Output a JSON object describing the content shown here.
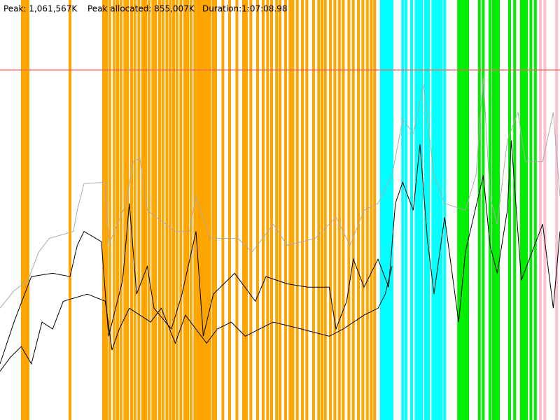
{
  "header": {
    "peak": "Peak: 1,061,567K",
    "peak_allocated": "Peak allocated: 855,007K",
    "duration": "Duration:1:07:08.98"
  },
  "chart_data": {
    "type": "line",
    "xlim": [
      0,
      100
    ],
    "ylim": [
      0,
      1273880
    ],
    "peak": 1061567,
    "peak_color": "#ff6060",
    "events": [
      {
        "color": "#ffa500",
        "x": [
          4,
          4.5,
          5,
          12.5,
          18.5,
          19,
          19.6,
          20.4,
          21,
          21.6,
          22.3,
          22.8,
          23.5,
          24.1,
          24.8,
          25.5,
          26,
          26.6,
          27.3,
          27.8,
          28.5,
          29.1,
          29.8,
          30.4,
          31,
          31.6,
          32.3,
          33,
          33.5,
          34.1,
          34.8,
          35.3,
          35.6,
          36,
          36.5,
          37,
          37.5,
          38.1,
          38.5,
          39.8,
          41,
          42.3,
          43.5,
          44,
          44.8,
          46,
          47,
          47.8,
          48.5,
          49.4,
          50,
          51,
          51.8,
          52.3,
          53.1,
          54,
          54.8,
          56,
          56.9,
          57.5,
          58.1,
          59,
          59.8,
          60.6,
          61.3,
          62.3,
          63.1,
          64,
          64.8,
          65.6,
          66.3,
          66.9
        ]
      },
      {
        "color": "#00ffff",
        "x": [
          68.1,
          68.5,
          69,
          69.5,
          70,
          71.9,
          72.5,
          73.5,
          74.3,
          74.8,
          75.3,
          76,
          76.5,
          77.3,
          77.8,
          78.3,
          78.8,
          79.4
        ]
      },
      {
        "color": "#00ee00",
        "x": [
          81.9,
          82.3,
          82.8,
          83.1,
          83.5,
          85.6,
          86.3,
          87.5,
          88.1,
          88.5,
          89,
          91,
          91.9,
          93.1,
          93.5,
          94,
          94.8,
          95.6
        ]
      },
      {
        "color": "#ffc0cb",
        "x": [
          96.5,
          97.3,
          99.4
        ]
      }
    ],
    "series": [
      {
        "color": "#aaaaaa",
        "x": [
          0,
          2.5,
          5,
          6.9,
          8.8,
          13.1,
          13.8,
          15,
          18.8,
          19.4,
          22.5,
          23.8,
          25,
          26.3,
          31.3,
          33.8,
          35,
          37.5,
          42.5,
          45,
          48.8,
          51.3,
          56.3,
          60,
          62.5,
          65,
          67.5,
          70,
          71.9,
          73.8,
          75.6,
          77.5,
          79.4,
          83.1,
          85,
          86.3,
          87.5,
          88.8,
          90.6,
          92.5,
          93.8,
          96.9,
          98.8,
          100
        ],
        "values": [
          339000,
          392000,
          424000,
          509000,
          551000,
          572000,
          636000,
          717000,
          721000,
          530000,
          657000,
          784000,
          795000,
          636000,
          572000,
          572000,
          678000,
          551000,
          551000,
          509000,
          594000,
          530000,
          551000,
          615000,
          530000,
          636000,
          657000,
          742000,
          912000,
          869000,
          1018000,
          742000,
          657000,
          636000,
          742000,
          1039000,
          678000,
          594000,
          848000,
          933000,
          784000,
          784000,
          933000,
          678000
        ]
      },
      {
        "color": "#000000",
        "x": [
          0,
          2.5,
          5.6,
          9.4,
          12.5,
          13.8,
          15,
          18.1,
          19.4,
          21.9,
          23.1,
          24.4,
          26.3,
          27.5,
          30.6,
          32.5,
          35,
          36.3,
          38.1,
          41.9,
          45.6,
          47.5,
          51.3,
          55,
          58.8,
          60,
          61.9,
          63.1,
          65,
          67.5,
          69.4,
          70.6,
          71.9,
          73.8,
          75,
          76.3,
          77.5,
          79.4,
          81.9,
          83.1,
          86.3,
          87.5,
          88.8,
          90.6,
          91.3,
          93.1,
          96.9,
          98.8,
          100
        ],
        "values": [
          170000,
          297000,
          435000,
          445000,
          435000,
          530000,
          572000,
          541000,
          254000,
          424000,
          657000,
          382000,
          466000,
          339000,
          276000,
          382000,
          572000,
          254000,
          382000,
          445000,
          360000,
          435000,
          413000,
          403000,
          403000,
          276000,
          360000,
          488000,
          403000,
          488000,
          403000,
          657000,
          721000,
          636000,
          837000,
          551000,
          382000,
          615000,
          297000,
          509000,
          742000,
          530000,
          445000,
          636000,
          848000,
          424000,
          594000,
          339000,
          572000
        ]
      },
      {
        "color": "#000000",
        "x": [
          0,
          1.9,
          3.8,
          5.6,
          7.5,
          9.4,
          11.3,
          15.6,
          18.8,
          20,
          21.3,
          23.1,
          26.9,
          28.8,
          31.3,
          33.1,
          36.9,
          38.8,
          41.3,
          43.8,
          48.8,
          53.8,
          58.8,
          61.3,
          65,
          67.5,
          68.8,
          70
        ],
        "values": [
          148000,
          191000,
          223000,
          170000,
          297000,
          276000,
          360000,
          382000,
          360000,
          212000,
          276000,
          339000,
          297000,
          339000,
          233000,
          318000,
          233000,
          276000,
          297000,
          254000,
          297000,
          276000,
          254000,
          276000,
          318000,
          339000,
          382000,
          466000
        ]
      }
    ]
  }
}
